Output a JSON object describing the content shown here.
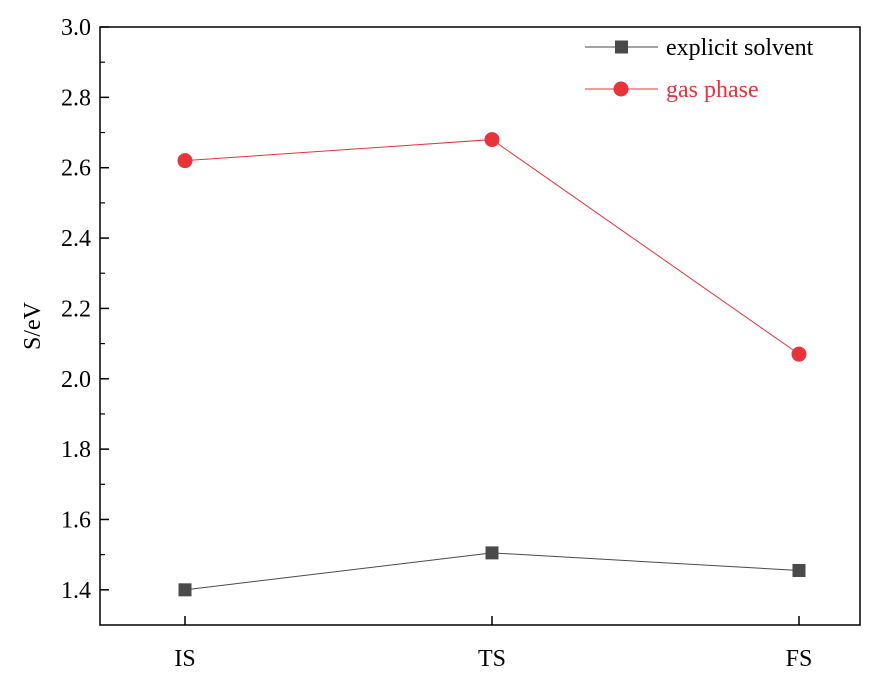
{
  "chart_data": {
    "type": "line",
    "xlabel": "",
    "ylabel": "S/eV",
    "categories": [
      "IS",
      "TS",
      "FS"
    ],
    "ylim": [
      1.3,
      3.0
    ],
    "yticks": [
      1.4,
      1.6,
      1.8,
      2.0,
      2.2,
      2.4,
      2.6,
      2.8,
      3.0
    ],
    "ytick_labels": [
      "1.4",
      "1.6",
      "1.8",
      "2.0",
      "2.2",
      "2.4",
      "2.6",
      "2.8",
      "3.0"
    ],
    "grid": false,
    "legend_position": "top-right",
    "series": [
      {
        "name": "explicit solvent",
        "values": [
          1.4,
          1.505,
          1.455
        ],
        "color": "#4a4a4a",
        "marker": "square"
      },
      {
        "name": "gas phase",
        "values": [
          2.62,
          2.68,
          2.07
        ],
        "color": "#e8333a",
        "marker": "circle"
      }
    ]
  }
}
